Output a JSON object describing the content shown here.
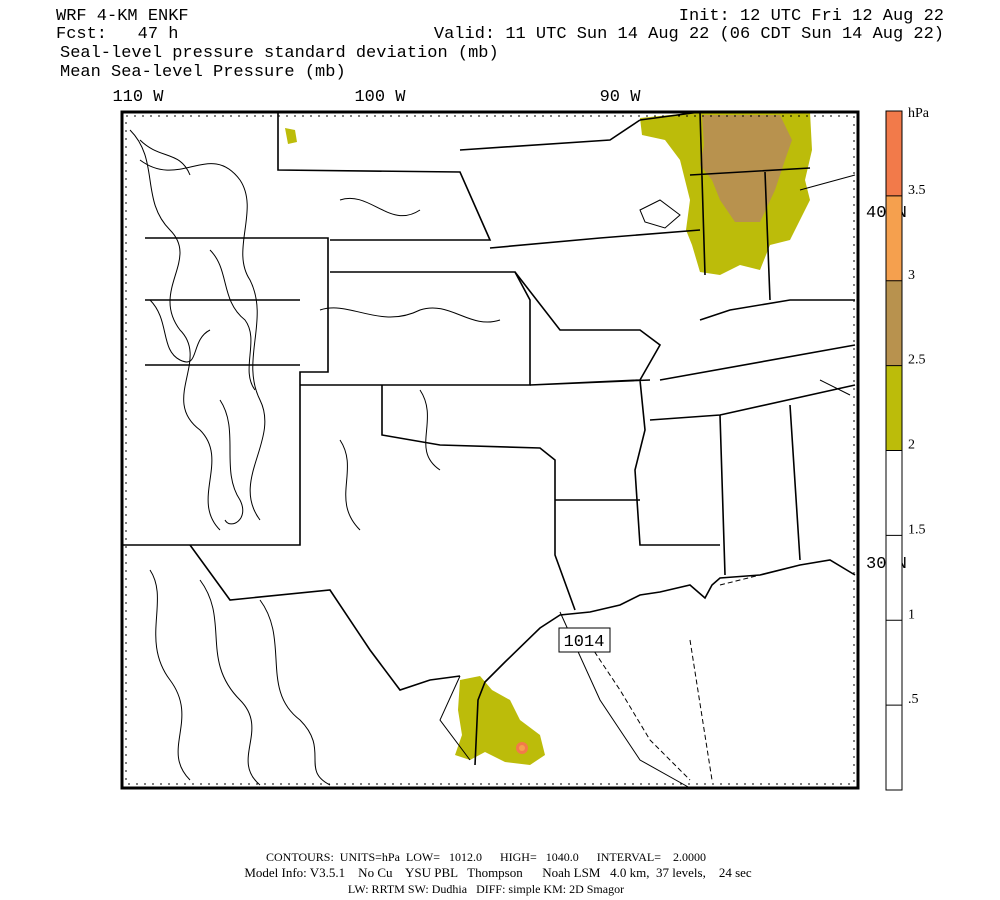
{
  "header": {
    "model": "WRF 4-KM ENKF",
    "init": "Init: 12 UTC Fri 12 Aug 22",
    "forecast": "Fcst:   47 h",
    "valid": "Valid: 11 UTC Sun 14 Aug 22 (06 CDT Sun 14 Aug 22)",
    "field_1": "Seal-level pressure standard deviation (mb)",
    "field_2": "Mean Sea-level Pressure (mb)"
  },
  "map": {
    "longitude_labels": [
      "110 W",
      "100 W",
      "90 W"
    ],
    "latitude_labels": [
      "40 N",
      "30 N"
    ],
    "contour_label": "1014"
  },
  "colorbar": {
    "unit": "hPa",
    "lim": [
      0,
      4
    ],
    "bands": [
      {
        "from": 2,
        "to": 2.5,
        "color": "#bcbc0a"
      },
      {
        "from": 2.5,
        "to": 3,
        "color": "#b8924e"
      },
      {
        "from": 3,
        "to": 3.5,
        "color": "#f5a04e"
      },
      {
        "from": 3.5,
        "to": 4,
        "color": "#f27a4a"
      }
    ],
    "ticks": [
      {
        "value": 0.5,
        "label": ".5"
      },
      1,
      1.5,
      2,
      2.5,
      3,
      3.5
    ]
  },
  "footer": {
    "contours": "CONTOURS:  UNITS=hPa  LOW=   1012.0      HIGH=   1040.0      INTERVAL=    2.0000",
    "model_info": "Model Info: V3.5.1    No Cu    YSU PBL   Thompson      Noah LSM   4.0 km,  37 levels,    24 sec",
    "physics": "LW: RRTM SW: Dudhia   DIFF: simple KM: 2D Smagor"
  }
}
